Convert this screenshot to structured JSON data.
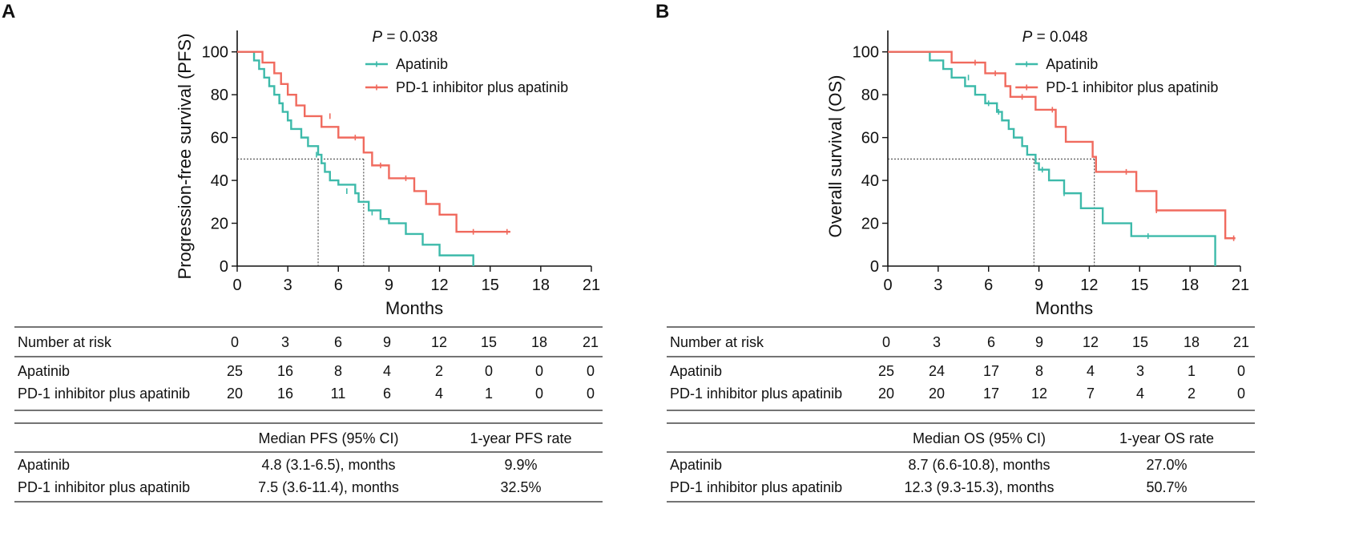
{
  "chart_data": [
    {
      "type": "line",
      "subtype": "kaplan-meier",
      "panel_label": "A",
      "p_value": {
        "label": "P",
        "text": " = 0.038"
      },
      "xlabel": "Months",
      "ylabel": "Progression-free survival (PFS)",
      "xlim": [
        0,
        21
      ],
      "ylim": [
        0,
        110
      ],
      "xticks": [
        0,
        3,
        6,
        9,
        12,
        15,
        18,
        21
      ],
      "yticks": [
        0,
        20,
        40,
        60,
        80,
        100
      ],
      "median_line_y": 50,
      "colors": {
        "Apatinib": "#3dbaaa",
        "PD-1 inhibitor plus apatinib": "#f06a5e"
      },
      "series": [
        {
          "name": "Apatinib",
          "color": "#3dbaaa",
          "median": 4.8,
          "steps": [
            [
              0,
              100
            ],
            [
              1.0,
              96
            ],
            [
              1.3,
              92
            ],
            [
              1.6,
              88
            ],
            [
              1.9,
              84
            ],
            [
              2.2,
              80
            ],
            [
              2.5,
              76
            ],
            [
              2.7,
              72
            ],
            [
              3.0,
              68
            ],
            [
              3.2,
              64
            ],
            [
              3.8,
              60
            ],
            [
              4.2,
              56
            ],
            [
              4.8,
              52
            ],
            [
              5.0,
              48
            ],
            [
              5.2,
              44
            ],
            [
              5.5,
              40
            ],
            [
              6.0,
              38
            ],
            [
              7.0,
              34
            ],
            [
              7.2,
              30
            ],
            [
              7.8,
              26
            ],
            [
              8.5,
              22
            ],
            [
              9.0,
              20
            ],
            [
              10.0,
              15
            ],
            [
              11.0,
              10
            ],
            [
              12.0,
              5
            ],
            [
              14.0,
              0
            ]
          ],
          "end_x": 14.0,
          "censors": [
            [
              4.7,
              52
            ],
            [
              6.5,
              35
            ],
            [
              8.0,
              25
            ]
          ]
        },
        {
          "name": "PD-1 inhibitor plus apatinib",
          "color": "#f06a5e",
          "median": 7.5,
          "steps": [
            [
              0,
              100
            ],
            [
              1.5,
              95
            ],
            [
              2.2,
              90
            ],
            [
              2.6,
              85
            ],
            [
              3.0,
              80
            ],
            [
              3.5,
              75
            ],
            [
              4.0,
              70
            ],
            [
              5.0,
              65
            ],
            [
              6.0,
              60
            ],
            [
              7.5,
              53
            ],
            [
              8.0,
              47
            ],
            [
              9.0,
              41
            ],
            [
              10.5,
              35
            ],
            [
              11.2,
              29
            ],
            [
              12.0,
              24
            ],
            [
              13.0,
              16
            ]
          ],
          "end_x": 16.2,
          "censors": [
            [
              5.5,
              70
            ],
            [
              7.0,
              60
            ],
            [
              8.5,
              47
            ],
            [
              10.0,
              41
            ],
            [
              14.0,
              16
            ],
            [
              16.0,
              16
            ]
          ]
        }
      ]
    },
    {
      "type": "line",
      "subtype": "kaplan-meier",
      "panel_label": "B",
      "p_value": {
        "label": "P",
        "text": " = 0.048"
      },
      "xlabel": "Months",
      "ylabel": "Overall survival (OS)",
      "xlim": [
        0,
        21
      ],
      "ylim": [
        0,
        110
      ],
      "xticks": [
        0,
        3,
        6,
        9,
        12,
        15,
        18,
        21
      ],
      "yticks": [
        0,
        20,
        40,
        60,
        80,
        100
      ],
      "median_line_y": 50,
      "colors": {
        "Apatinib": "#3dbaaa",
        "PD-1 inhibitor plus apatinib": "#f06a5e"
      },
      "series": [
        {
          "name": "Apatinib",
          "color": "#3dbaaa",
          "median": 8.7,
          "steps": [
            [
              0,
              100
            ],
            [
              2.5,
              96
            ],
            [
              3.3,
              92
            ],
            [
              3.8,
              88
            ],
            [
              4.6,
              84
            ],
            [
              5.2,
              80
            ],
            [
              5.8,
              76
            ],
            [
              6.5,
              72
            ],
            [
              6.8,
              68
            ],
            [
              7.2,
              64
            ],
            [
              7.5,
              60
            ],
            [
              8.0,
              56
            ],
            [
              8.3,
              52
            ],
            [
              8.8,
              48
            ],
            [
              9.0,
              45
            ],
            [
              9.6,
              40
            ],
            [
              10.5,
              34
            ],
            [
              11.5,
              27
            ],
            [
              12.8,
              20
            ],
            [
              14.5,
              14
            ],
            [
              19.5,
              0
            ]
          ],
          "end_x": 19.5,
          "censors": [
            [
              4.8,
              88
            ],
            [
              6.0,
              76
            ],
            [
              6.6,
              72
            ],
            [
              9.2,
              45
            ],
            [
              10.5,
              34
            ],
            [
              15.5,
              14
            ]
          ]
        },
        {
          "name": "PD-1 inhibitor plus apatinib",
          "color": "#f06a5e",
          "median": 12.3,
          "steps": [
            [
              0,
              100
            ],
            [
              3.8,
              95
            ],
            [
              5.8,
              90
            ],
            [
              7.0,
              84
            ],
            [
              7.3,
              79
            ],
            [
              8.8,
              73
            ],
            [
              10.0,
              65
            ],
            [
              10.6,
              58
            ],
            [
              12.2,
              51
            ],
            [
              12.4,
              44
            ],
            [
              14.8,
              35
            ],
            [
              16.0,
              26
            ],
            [
              20.1,
              13
            ]
          ],
          "end_x": 20.7,
          "censors": [
            [
              5.2,
              95
            ],
            [
              6.4,
              90
            ],
            [
              8.0,
              79
            ],
            [
              9.8,
              73
            ],
            [
              14.2,
              44
            ],
            [
              16.0,
              26
            ],
            [
              20.6,
              13
            ]
          ]
        }
      ]
    }
  ],
  "tables": {
    "risk_A": {
      "header": [
        "Number at risk",
        "0",
        "3",
        "6",
        "9",
        "12",
        "15",
        "18",
        "21"
      ],
      "rows": [
        [
          "Apatinib",
          "25",
          "16",
          "8",
          "4",
          "2",
          "0",
          "0",
          "0"
        ],
        [
          "PD-1 inhibitor plus apatinib",
          "20",
          "16",
          "11",
          "6",
          "4",
          "1",
          "0",
          "0"
        ]
      ]
    },
    "risk_B": {
      "header": [
        "Number at risk",
        "0",
        "3",
        "6",
        "9",
        "12",
        "15",
        "18",
        "21"
      ],
      "rows": [
        [
          "Apatinib",
          "25",
          "24",
          "17",
          "8",
          "4",
          "3",
          "1",
          "0"
        ],
        [
          "PD-1 inhibitor plus apatinib",
          "20",
          "20",
          "17",
          "12",
          "7",
          "4",
          "2",
          "0"
        ]
      ]
    },
    "median_A": {
      "header": [
        "",
        "Median PFS (95% CI)",
        "1-year PFS rate"
      ],
      "rows": [
        [
          "Apatinib",
          "4.8 (3.1-6.5), months",
          "9.9%"
        ],
        [
          "PD-1 inhibitor plus apatinib",
          "7.5 (3.6-11.4), months",
          "32.5%"
        ]
      ]
    },
    "median_B": {
      "header": [
        "",
        "Median OS (95% CI)",
        "1-year OS rate"
      ],
      "rows": [
        [
          "Apatinib",
          "8.7 (6.6-10.8), months",
          "27.0%"
        ],
        [
          "PD-1 inhibitor plus apatinib",
          "12.3 (9.3-15.3), months",
          "50.7%"
        ]
      ]
    }
  }
}
